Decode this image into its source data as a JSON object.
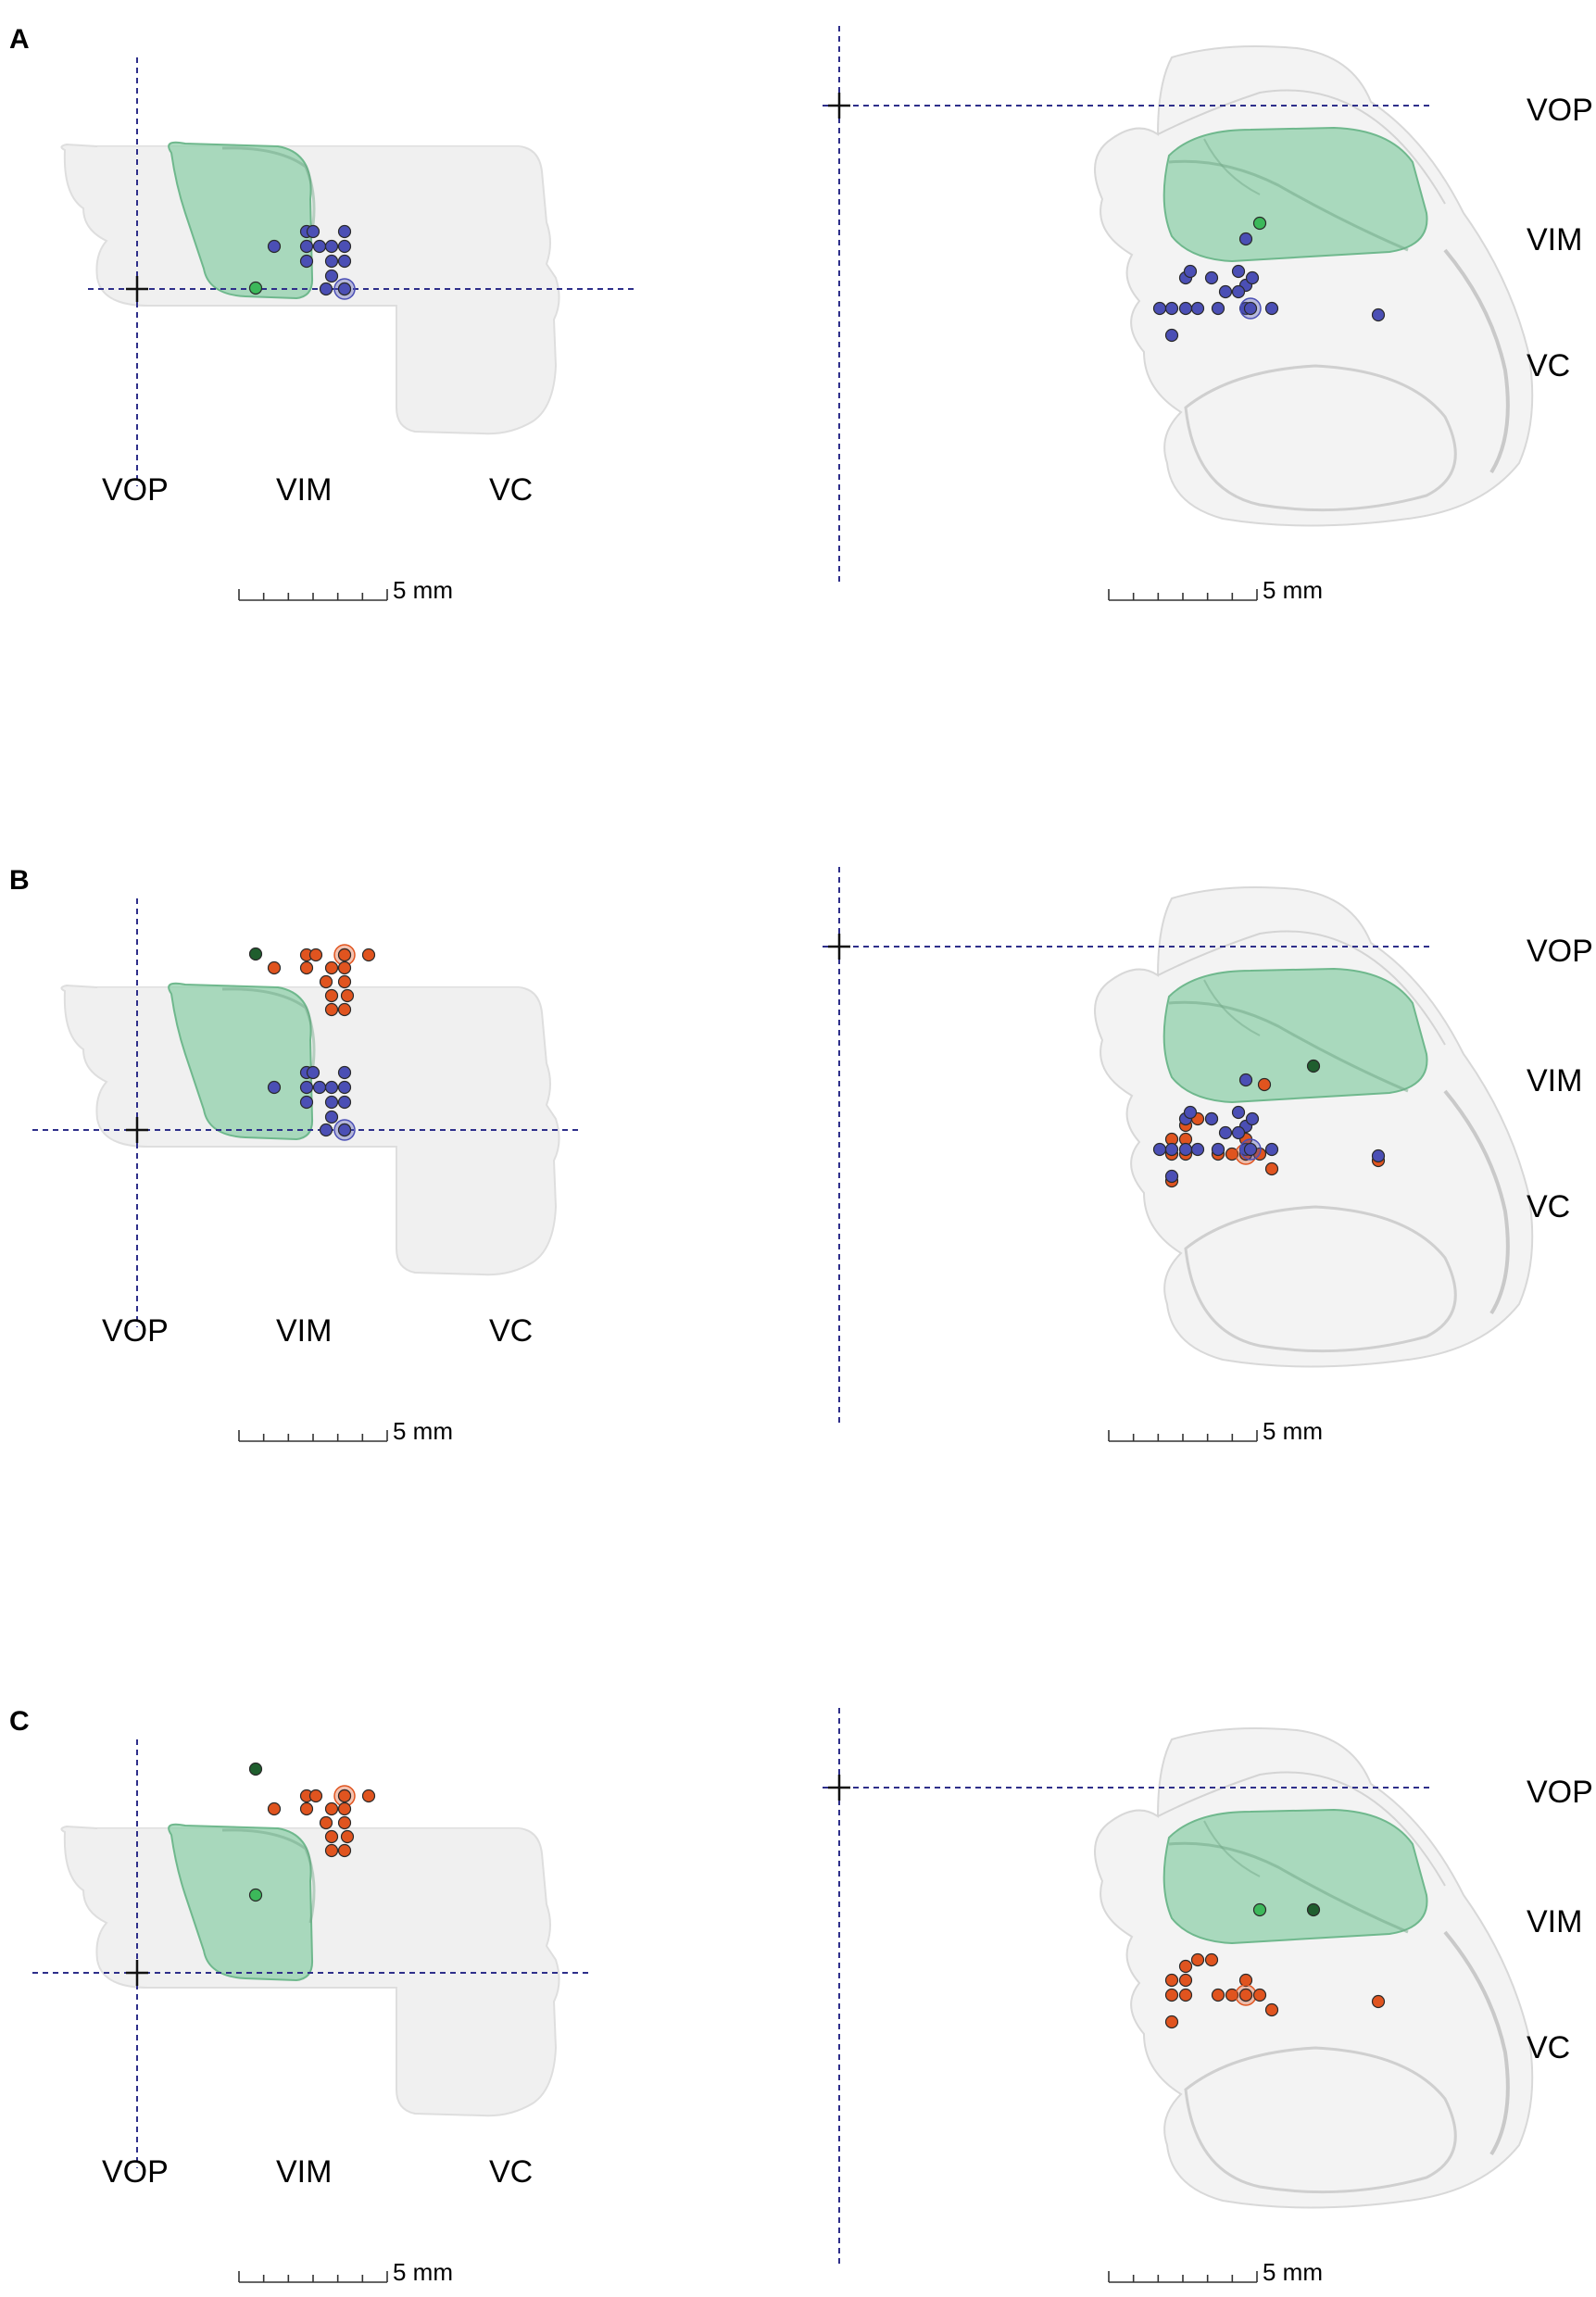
{
  "panels": [
    {
      "letter": "A",
      "markers": "A"
    },
    {
      "letter": "B",
      "markers": "B"
    },
    {
      "letter": "C",
      "markers": "C"
    }
  ],
  "labels": {
    "lateral": [
      "VOP",
      "VIM",
      "VC"
    ],
    "right": [
      "VOP",
      "VIM",
      "VC"
    ]
  },
  "scale_bar": "5 mm",
  "colors": {
    "thalamus": "#e5e5e5",
    "vim_region": "#8ccfa8",
    "crosshair": "#2e2f8a",
    "blue_marker": "#4b4fb5",
    "orange_marker": "#e0541f",
    "light_green_marker": "#3cb85a",
    "dark_green_marker": "#1f5e2e"
  }
}
